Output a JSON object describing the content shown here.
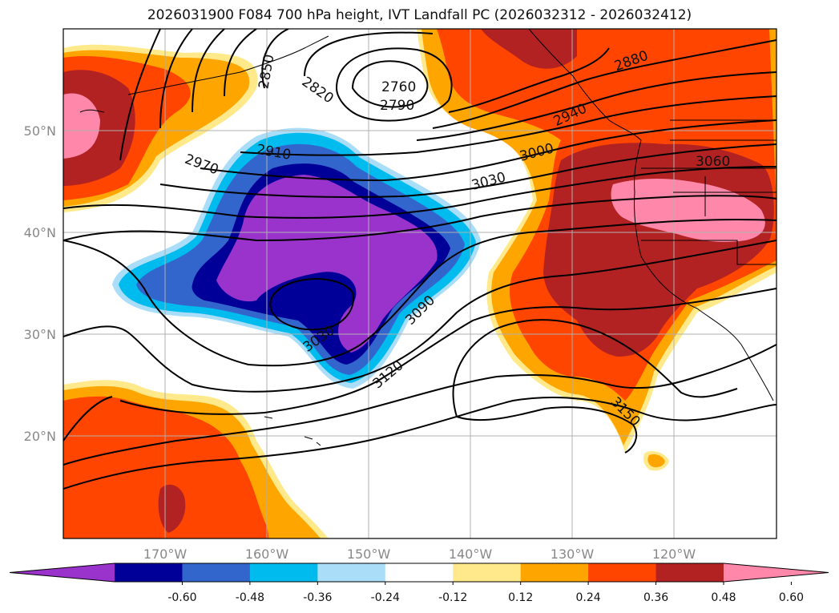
{
  "title": "2026031900 F084 700 hPa height, IVT Landfall PC (2026032312 - 2026032412)",
  "map": {
    "lat_labels": [
      "50°N",
      "40°N",
      "30°N",
      "20°N"
    ],
    "lon_labels": [
      "170°W",
      "160°W",
      "150°W",
      "140°W",
      "130°W",
      "120°W"
    ],
    "contour_labels": [
      "2760",
      "2790",
      "2820",
      "2850",
      "2880",
      "2910",
      "2940",
      "2970",
      "3000",
      "3030",
      "3060",
      "3090",
      "3120",
      "3150",
      "3030"
    ]
  },
  "colorbar": {
    "ticks": [
      "-0.60",
      "-0.48",
      "-0.36",
      "-0.24",
      "-0.12",
      "0.12",
      "0.24",
      "0.36",
      "0.48",
      "0.60"
    ],
    "colors": [
      "#9933cc",
      "#000099",
      "#3366cc",
      "#00bbee",
      "#aaddf7",
      "#ffffff",
      "#ffe98a",
      "#ffa500",
      "#ff4500",
      "#b22222",
      "#ff88aa"
    ]
  }
}
